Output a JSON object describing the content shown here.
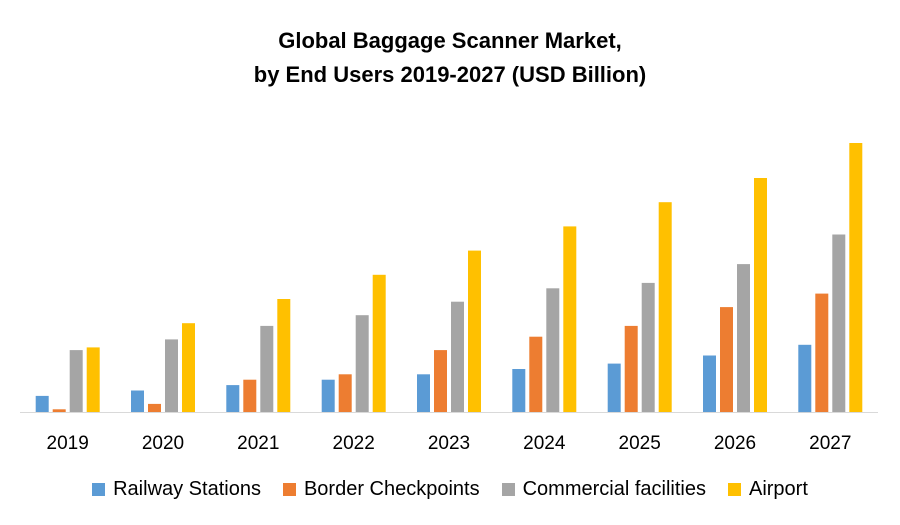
{
  "chart_data": {
    "type": "bar",
    "title_line1": "Global Baggage Scanner Market,",
    "title_line2": "by End Users 2019-2027 (USD Billion)",
    "xlabel": "",
    "ylabel": "",
    "ylim": [
      0,
      100
    ],
    "grid": false,
    "legend_position": "bottom",
    "categories": [
      "2019",
      "2020",
      "2021",
      "2022",
      "2023",
      "2024",
      "2025",
      "2026",
      "2027"
    ],
    "series": [
      {
        "name": "Railway Stations",
        "color": "#5B9BD5",
        "values": [
          6,
          8,
          10,
          12,
          14,
          16,
          18,
          21,
          25
        ]
      },
      {
        "name": "Border Checkpoints",
        "color": "#ED7D31",
        "values": [
          1,
          3,
          12,
          14,
          23,
          28,
          32,
          39,
          44
        ]
      },
      {
        "name": "Commercial facilities",
        "color": "#A5A5A5",
        "values": [
          23,
          27,
          32,
          36,
          41,
          46,
          48,
          55,
          66
        ]
      },
      {
        "name": "Airport",
        "color": "#FFC000",
        "values": [
          24,
          33,
          42,
          51,
          60,
          69,
          78,
          87,
          100
        ]
      }
    ]
  }
}
